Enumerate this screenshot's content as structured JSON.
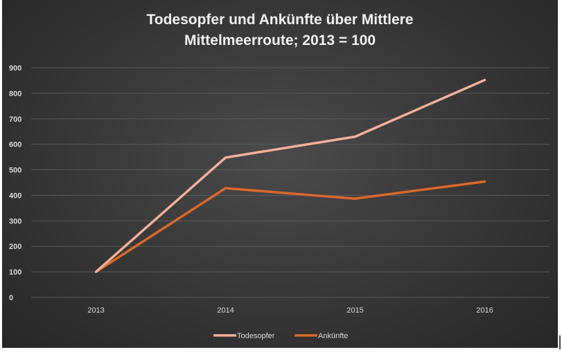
{
  "chart_data": {
    "type": "line",
    "title_line1": "Todesopfer und Ankünfte über Mittlere",
    "title_line2": "Mittelmeerroute; 2013 = 100",
    "categories": [
      "2013",
      "2014",
      "2015",
      "2016"
    ],
    "series": [
      {
        "name": "Todesopfer",
        "values": [
          100,
          548,
          630,
          852
        ],
        "color": "#f4b199"
      },
      {
        "name": "Ankünfte",
        "values": [
          100,
          428,
          387,
          454
        ],
        "color": "#d9692a"
      }
    ],
    "yticks": [
      0,
      100,
      200,
      300,
      400,
      500,
      600,
      700,
      800,
      900
    ],
    "ylim": [
      0,
      900
    ],
    "grid": true,
    "legend_position": "bottom",
    "xlabel": "",
    "ylabel": ""
  }
}
